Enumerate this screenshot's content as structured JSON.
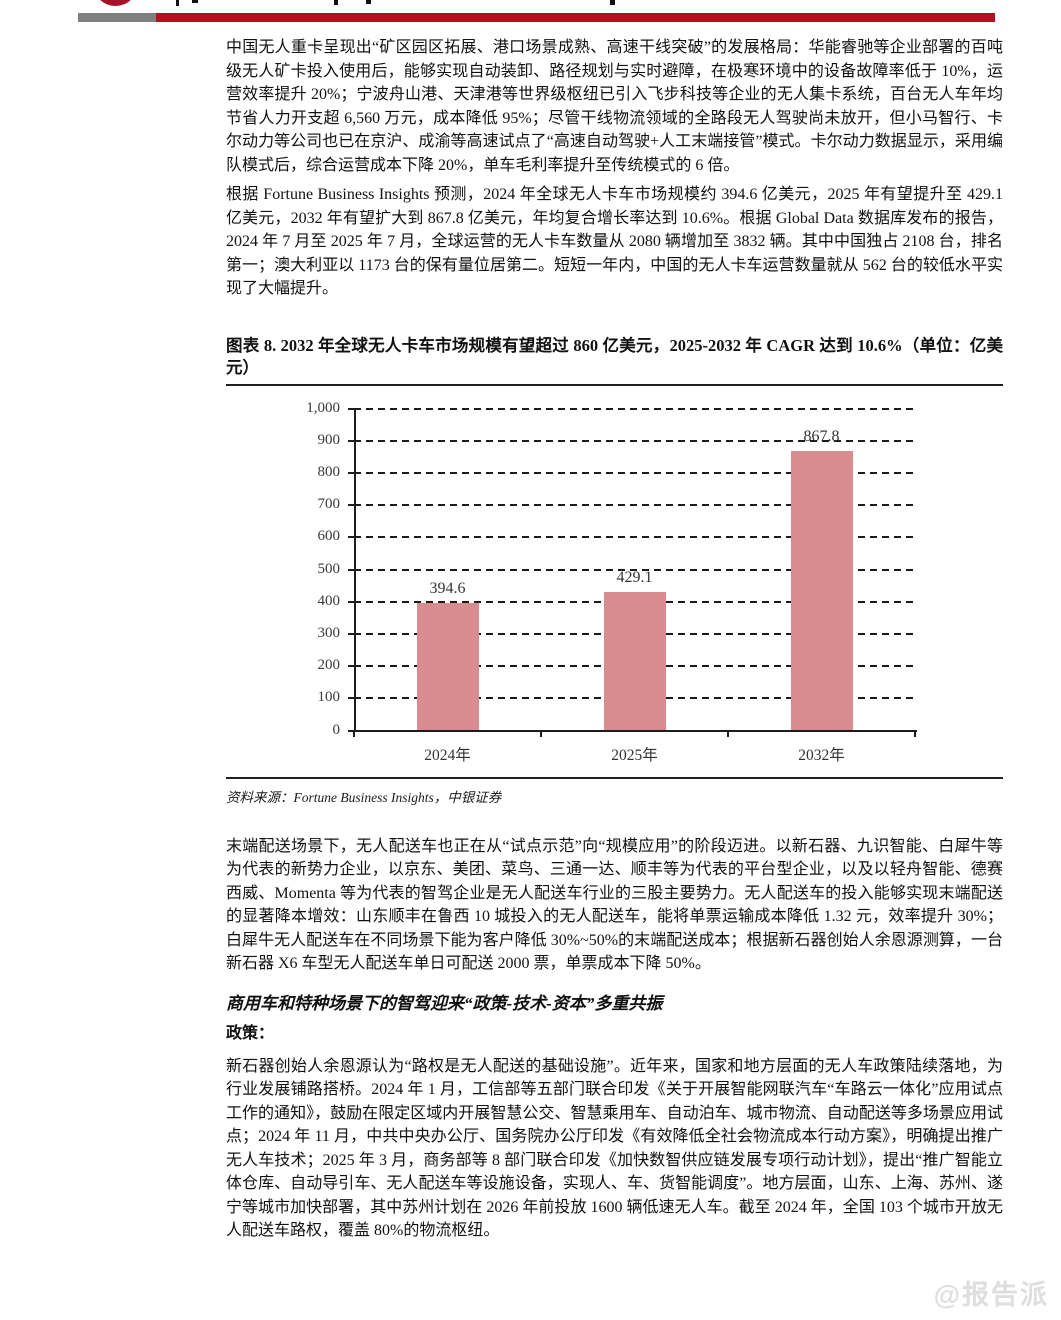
{
  "header": {
    "logo_color": "#a8112a",
    "bar_gray_color": "#7f7f7f",
    "bar_red_color": "#b0121f"
  },
  "paragraphs": {
    "p1": "中国无人重卡呈现出“矿区园区拓展、港口场景成熟、高速干线突破”的发展格局：华能睿驰等企业部署的百吨级无人矿卡投入使用后，能够实现自动装卸、路径规划与实时避障，在极寒环境中的设备故障率低于 10%，运营效率提升 20%；宁波舟山港、天津港等世界级枢纽已引入飞步科技等企业的无人集卡系统，百台无人车年均节省人力开支超 6,560 万元，成本降低 95%；尽管干线物流领域的全路段无人驾驶尚未放开，但小马智行、卡尔动力等公司也已在京沪、成渝等高速试点了“高速自动驾驶+人工末端接管”模式。卡尔动力数据显示，采用编队模式后，综合运营成本下降 20%，单车毛利率提升至传统模式的 6 倍。",
    "p2": "根据 Fortune Business Insights 预测，2024 年全球无人卡车市场规模约 394.6 亿美元，2025 年有望提升至 429.1 亿美元，2032 年有望扩大到 867.8 亿美元，年均复合增长率达到 10.6%。根据 Global Data 数据库发布的报告，2024 年 7 月至 2025 年 7 月，全球运营的无人卡车数量从 2080 辆增加至 3832 辆。其中中国独占 2108 台，排名第一；澳大利亚以 1173 台的保有量位居第二。短短一年内，中国的无人卡车运营数量就从 562 台的较低水平实现了大幅提升。",
    "p3": "末端配送场景下，无人配送车也正在从“试点示范”向“规模应用”的阶段迈进。以新石器、九识智能、白犀牛等为代表的新势力企业，以京东、美团、菜鸟、三通一达、顺丰等为代表的平台型企业，以及以轻舟智能、德赛西威、Momenta 等为代表的智驾企业是无人配送车行业的三股主要势力。无人配送车的投入能够实现末端配送的显著降本增效：山东顺丰在鲁西 10 城投入的无人配送车，能将单票运输成本降低 1.32 元，效率提升 30%；白犀牛无人配送车在不同场景下能为客户降低 30%~50%的末端配送成本；根据新石器创始人余恩源测算，一台新石器 X6 车型无人配送车单日可配送 2000 票，单票成本下降 50%。",
    "p4": "新石器创始人余恩源认为“路权是无人配送的基础设施”。近年来，国家和地方层面的无人车政策陆续落地，为行业发展铺路搭桥。2024 年 1 月，工信部等五部门联合印发《关于开展智能网联汽车“车路云一体化”应用试点工作的通知》，鼓励在限定区域内开展智慧公交、智慧乘用车、自动泊车、城市物流、自动配送等多场景应用试点；2024 年 11 月，中共中央办公厅、国务院办公厅印发《有效降低全社会物流成本行动方案》，明确提出推广无人车技术；2025 年 3 月，商务部等 8 部门联合印发《加快数智供应链发展专项行动计划》，提出“推广智能立体仓库、自动导引车、无人配送车等设施设备，实现人、车、货智能调度”。地方层面，山东、上海、苏州、遂宁等城市加快部署，其中苏州计划在 2026 年前投放 1600 辆低速无人车。截至 2024 年，全国 103 个城市开放无人配送车路权，覆盖 80%的物流枢纽。"
  },
  "figure": {
    "title": "图表 8. 2032 年全球无人卡车市场规模有望超过 860 亿美元，2025-2032 年 CAGR 达到 10.6%（单位：亿美元）",
    "source": "资料来源：Fortune Business Insights，中银证券"
  },
  "chart_data": {
    "type": "bar",
    "title": "2032 年全球无人卡车市场规模有望超过 860 亿美元，2025-2032 年 CAGR 达到 10.6%",
    "unit": "亿美元",
    "categories": [
      "2024年",
      "2025年",
      "2032年"
    ],
    "values": [
      394.6,
      429.1,
      867.8
    ],
    "data_labels": [
      "394.6",
      "429.1",
      "867.8"
    ],
    "ylim": [
      0,
      1000
    ],
    "ytick_step": 100,
    "ytick_labels": [
      "0",
      "100",
      "200",
      "300",
      "400",
      "500",
      "600",
      "700",
      "800",
      "900",
      "1,000"
    ],
    "grid": "dashed-horizontal",
    "legend_position": "none",
    "bar_color": "#d88c8f",
    "xlabel": "",
    "ylabel": ""
  },
  "section": {
    "heading": "商用车和特种场景下的智驾迎来“政策-技术-资本”多重共振",
    "policy_label": "政策："
  },
  "page": {
    "watermark": "@报告派"
  }
}
